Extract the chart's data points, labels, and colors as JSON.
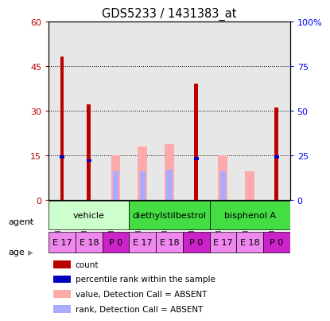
{
  "title": "GDS5233 / 1431383_at",
  "samples": [
    "GSM612931",
    "GSM612932",
    "GSM612933",
    "GSM612934",
    "GSM612935",
    "GSM612936",
    "GSM612937",
    "GSM612938",
    "GSM612939"
  ],
  "count_values": [
    48,
    32,
    null,
    null,
    null,
    39,
    null,
    null,
    31
  ],
  "count_color": "#bb0000",
  "percentile_values": [
    24,
    22,
    null,
    null,
    null,
    23,
    null,
    null,
    24
  ],
  "percentile_color": "#0000bb",
  "absent_value_values": [
    null,
    null,
    25,
    30,
    31,
    null,
    25,
    16,
    null
  ],
  "absent_value_color": "#ffaaaa",
  "absent_rank_values": [
    null,
    null,
    16,
    16,
    17,
    null,
    16,
    null,
    null
  ],
  "absent_rank_color": "#aaaaff",
  "ylim_left": [
    0,
    60
  ],
  "ylim_right": [
    0,
    100
  ],
  "yticks_left": [
    0,
    15,
    30,
    45,
    60
  ],
  "yticks_right": [
    0,
    25,
    50,
    75,
    100
  ],
  "ytick_labels_left": [
    "0",
    "15",
    "30",
    "45",
    "60"
  ],
  "ytick_labels_right": [
    "0",
    "25",
    "50",
    "75",
    "100%"
  ],
  "agent_groups": [
    {
      "label": "vehicle",
      "start": 0,
      "end": 2,
      "color": "#ccffcc"
    },
    {
      "label": "diethylstilbestrol",
      "start": 3,
      "end": 5,
      "color": "#44cc44"
    },
    {
      "label": "bisphenol A",
      "start": 6,
      "end": 8,
      "color": "#44cc44"
    }
  ],
  "age_groups": [
    {
      "label": "E 17",
      "color": "#ee88ee"
    },
    {
      "label": "E 18",
      "color": "#ee88ee"
    },
    {
      "label": "P 0",
      "color": "#cc22cc"
    },
    {
      "label": "E 17",
      "color": "#ee88ee"
    },
    {
      "label": "E 18",
      "color": "#ee88ee"
    },
    {
      "label": "P 0",
      "color": "#cc22cc"
    },
    {
      "label": "E 17",
      "color": "#ee88ee"
    },
    {
      "label": "E 18",
      "color": "#ee88ee"
    },
    {
      "label": "P 0",
      "color": "#cc22cc"
    }
  ],
  "legend_items": [
    {
      "label": "count",
      "color": "#bb0000"
    },
    {
      "label": "percentile rank within the sample",
      "color": "#0000bb"
    },
    {
      "label": "value, Detection Call = ABSENT",
      "color": "#ffaaaa"
    },
    {
      "label": "rank, Detection Call = ABSENT",
      "color": "#aaaaff"
    }
  ],
  "sample_bg_color": "#bbbbbb",
  "agent_label": "agent",
  "age_label": "age"
}
